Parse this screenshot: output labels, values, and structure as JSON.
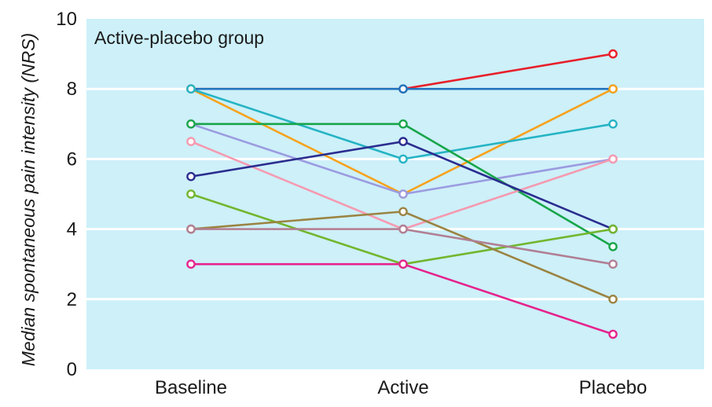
{
  "chart_data": {
    "type": "line",
    "title": "Active-placebo group",
    "xlabel": "",
    "ylabel": "Median spontaneous pain intensity (NRS)",
    "categories": [
      "Baseline",
      "Active",
      "Placebo"
    ],
    "ylim": [
      0,
      10
    ],
    "yticks": [
      0,
      2,
      4,
      6,
      8,
      10
    ],
    "grid": true,
    "background_color": "#cdf0f9",
    "series": [
      {
        "color": "#e8202a",
        "values": [
          8,
          8,
          9
        ]
      },
      {
        "color": "#1e73be",
        "values": [
          8,
          8,
          8
        ]
      },
      {
        "color": "#f7a21b",
        "values": [
          8,
          5,
          8
        ]
      },
      {
        "color": "#25b4c4",
        "values": [
          8,
          6,
          7
        ]
      },
      {
        "color": "#9b9be0",
        "values": [
          7,
          5,
          6
        ]
      },
      {
        "color": "#18a54a",
        "values": [
          7,
          7,
          3.5
        ]
      },
      {
        "color": "#f59ab0",
        "values": [
          6.5,
          4,
          6
        ]
      },
      {
        "color": "#2b2d8f",
        "values": [
          5.5,
          6.5,
          4
        ]
      },
      {
        "color": "#72b62e",
        "values": [
          5,
          3,
          4
        ]
      },
      {
        "color": "#9b8342",
        "values": [
          4,
          4.5,
          2
        ]
      },
      {
        "color": "#b07f93",
        "values": [
          4,
          4,
          3
        ]
      },
      {
        "color": "#e6238d",
        "values": [
          3,
          3,
          1
        ]
      }
    ]
  }
}
